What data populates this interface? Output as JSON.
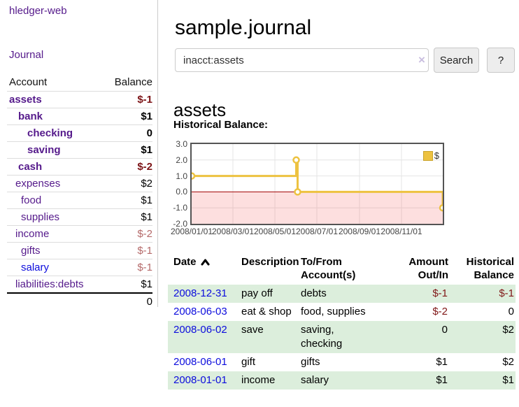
{
  "brand": {
    "label": "hledger-web"
  },
  "nav": {
    "journal": "Journal"
  },
  "sidebar": {
    "headers": {
      "account": "Account",
      "balance": "Balance"
    },
    "accounts": [
      {
        "name": "assets",
        "depth": 0,
        "bold": true,
        "link_color": "purple",
        "balance": "$-1",
        "balance_tone": "neg-dark"
      },
      {
        "name": "bank",
        "depth": 1,
        "bold": true,
        "link_color": "purple",
        "balance": "$1",
        "balance_tone": "normal"
      },
      {
        "name": "checking",
        "depth": 2,
        "bold": true,
        "link_color": "purple",
        "balance": "0",
        "balance_tone": "normal"
      },
      {
        "name": "saving",
        "depth": 2,
        "bold": true,
        "link_color": "purple",
        "balance": "$1",
        "balance_tone": "normal"
      },
      {
        "name": "cash",
        "depth": 1,
        "bold": true,
        "link_color": "purple",
        "balance": "$-2",
        "balance_tone": "neg-dark"
      },
      {
        "name": "expenses",
        "depth": 0,
        "bold": false,
        "link_color": "purple",
        "balance": "$2",
        "balance_tone": "normal"
      },
      {
        "name": "food",
        "depth": 1,
        "bold": false,
        "link_color": "purple",
        "balance": "$1",
        "balance_tone": "normal"
      },
      {
        "name": "supplies",
        "depth": 1,
        "bold": false,
        "link_color": "purple",
        "balance": "$1",
        "balance_tone": "normal"
      },
      {
        "name": "income",
        "depth": 0,
        "bold": false,
        "link_color": "purple",
        "balance": "$-2",
        "balance_tone": "neg-light"
      },
      {
        "name": "gifts",
        "depth": 1,
        "bold": false,
        "link_color": "purple",
        "balance": "$-1",
        "balance_tone": "neg-light"
      },
      {
        "name": "salary",
        "depth": 1,
        "bold": false,
        "link_color": "blue",
        "balance": "$-1",
        "balance_tone": "neg-light"
      },
      {
        "name": "liabilities:debts",
        "depth": 0,
        "bold": false,
        "link_color": "purple",
        "balance": "$1",
        "balance_tone": "normal"
      }
    ],
    "total": "0"
  },
  "main": {
    "title": "sample.journal",
    "search": {
      "value": "inacct:assets",
      "clear_icon": "×",
      "search_button": "Search",
      "help_button": "?"
    },
    "account_heading": "assets",
    "chart_heading": "Historical Balance:"
  },
  "chart_data": {
    "type": "line",
    "step": true,
    "title": "Historical Balance:",
    "legend": {
      "label": "$",
      "position": "top-right",
      "color": "#edc240"
    },
    "series": [
      {
        "name": "$",
        "color": "#edc240",
        "points": [
          {
            "date": "2008-01-01",
            "value": 1
          },
          {
            "date": "2008-06-01",
            "value": 2
          },
          {
            "date": "2008-06-03",
            "value": 0
          },
          {
            "date": "2008-12-31",
            "value": -1
          }
        ]
      }
    ],
    "x_ticks": [
      "2008/01/01",
      "2008/03/01",
      "2008/05/01",
      "2008/07/01",
      "2008/09/01",
      "2008/11/01"
    ],
    "y_ticks": [
      "3.0",
      "2.0",
      "1.0",
      "0.0",
      "-1.0",
      "-2.0"
    ],
    "ylim": [
      -2,
      3
    ],
    "x_range_dates": [
      "2008-01-01",
      "2008-12-31"
    ],
    "grid": true,
    "negative_region": true,
    "colors": {
      "negative_fill": "rgba(244,96,96,0.20)",
      "zero_line": "#a00000",
      "grid": "#e4e4e4",
      "border": "#545454"
    }
  },
  "register": {
    "headers": {
      "date": "Date",
      "description": "Description",
      "tofrom": "To/From Account(s)",
      "amount": "Amount Out/In",
      "balance": "Historical Balance"
    },
    "sort_indicator": "up",
    "rows": [
      {
        "date": "2008-12-31",
        "description": "pay off",
        "tofrom": "debts",
        "amount": "$-1",
        "amount_tone": "neg",
        "balance": "$-1",
        "balance_tone": "neg"
      },
      {
        "date": "2008-06-03",
        "description": "eat & shop",
        "tofrom": "food, supplies",
        "amount": "$-2",
        "amount_tone": "neg",
        "balance": "0",
        "balance_tone": "normal"
      },
      {
        "date": "2008-06-02",
        "description": "save",
        "tofrom": "saving, checking",
        "amount": "0",
        "amount_tone": "normal",
        "balance": "$2",
        "balance_tone": "normal"
      },
      {
        "date": "2008-06-01",
        "description": "gift",
        "tofrom": "gifts",
        "amount": "$1",
        "amount_tone": "normal",
        "balance": "$2",
        "balance_tone": "normal"
      },
      {
        "date": "2008-01-01",
        "description": "income",
        "tofrom": "salary",
        "amount": "$1",
        "amount_tone": "normal",
        "balance": "$1",
        "balance_tone": "normal"
      }
    ]
  },
  "colors": {
    "link_purple": "#551a8b",
    "link_blue": "#0c0cdd",
    "negative_dark": "#7c1316",
    "negative_light": "#b56a6a",
    "row_green": "#dceedc",
    "series_yellow": "#edc240"
  }
}
